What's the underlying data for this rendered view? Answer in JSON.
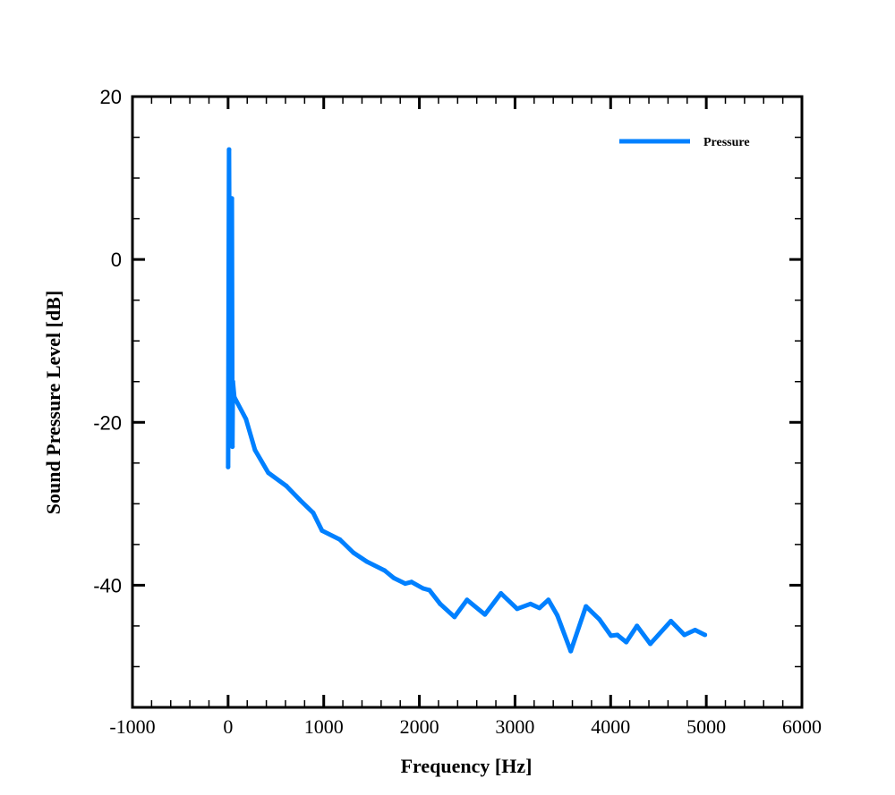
{
  "chart_data": {
    "type": "line",
    "title": "",
    "xlabel": "Frequency [Hz]",
    "ylabel": "Sound Pressure Level [dB]",
    "xlim": [
      -1000,
      6000
    ],
    "ylim": [
      -55,
      20
    ],
    "xticks": [
      -1000,
      0,
      1000,
      2000,
      3000,
      4000,
      5000,
      6000
    ],
    "xtick_labels": [
      "-1000",
      "0",
      "1000",
      "2000",
      "3000",
      "4000",
      "5000",
      "6000"
    ],
    "xminor_step": 200,
    "yticks": [
      20,
      0,
      -20,
      -40
    ],
    "ytick_labels": [
      "20",
      "0",
      "-20",
      "-40"
    ],
    "yminor_step": 5,
    "grid": false,
    "legend": {
      "position": "top-right",
      "entries": [
        "Pressure"
      ]
    },
    "series": [
      {
        "name": "Pressure",
        "color": "#0080ff",
        "x": [
          0,
          10,
          20,
          40,
          45,
          50,
          65,
          187,
          281,
          421,
          608,
          748,
          889,
          982,
          1169,
          1310,
          1450,
          1637,
          1731,
          1852,
          1918,
          2039,
          2105,
          2217,
          2367,
          2498,
          2685,
          2853,
          3022,
          3162,
          3255,
          3349,
          3442,
          3583,
          3742,
          3882,
          4004,
          4069,
          4163,
          4275,
          4415,
          4630,
          4771,
          4883,
          4986
        ],
        "y": [
          -25.5,
          13.5,
          -19,
          7.5,
          -23,
          -15,
          -16.9,
          -19.6,
          -23.4,
          -26.2,
          -27.8,
          -29.5,
          -31.1,
          -33.3,
          -34.4,
          -36.0,
          -37.1,
          -38.2,
          -39.1,
          -39.8,
          -39.6,
          -40.4,
          -40.6,
          -42.3,
          -43.9,
          -41.8,
          -43.6,
          -41.0,
          -42.9,
          -42.3,
          -42.8,
          -41.8,
          -43.7,
          -48.1,
          -42.6,
          -44.2,
          -46.2,
          -46.1,
          -47.0,
          -45.0,
          -47.2,
          -44.4,
          -46.1,
          -45.5,
          -46.1
        ]
      }
    ]
  }
}
